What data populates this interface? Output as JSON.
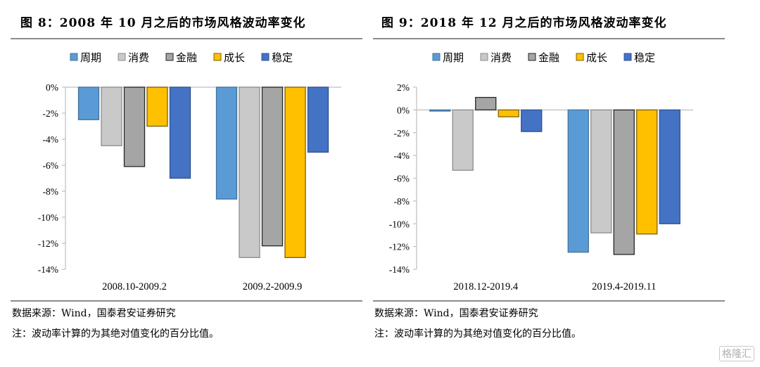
{
  "legend_labels": [
    "周期",
    "消费",
    "金融",
    "成长",
    "稳定"
  ],
  "series_colors": {
    "fill": [
      "#5B9BD5",
      "#C9C9C9",
      "#A5A5A5",
      "#FFC000",
      "#4472C4"
    ],
    "stroke": [
      "#41719C",
      "#8C8C8C",
      "#262626",
      "#7F6000",
      "#2F528F"
    ]
  },
  "charts": [
    {
      "title": "图 8：2008 年 10 月之后的市场风格波动率变化",
      "source": "数据来源：Wind，国泰君安证券研究",
      "note": "注：波动率计算的为其绝对值变化的百分比值。"
    },
    {
      "title": "图 9：2018 年 12 月之后的市场风格波动率变化",
      "source": "数据来源：Wind，国泰君安证券研究",
      "note": "注：波动率计算的为其绝对值变化的百分比值。"
    }
  ],
  "chart_data": [
    {
      "type": "bar",
      "title": "图 8：2008 年 10 月之后的市场风格波动率变化",
      "categories": [
        "2008.10-2009.2",
        "2009.2-2009.9"
      ],
      "series": [
        {
          "name": "周期",
          "values": [
            -2.5,
            -8.6
          ]
        },
        {
          "name": "消费",
          "values": [
            -4.5,
            -13.1
          ]
        },
        {
          "name": "金融",
          "values": [
            -6.1,
            -12.2
          ]
        },
        {
          "name": "成长",
          "values": [
            -3.0,
            -13.1
          ]
        },
        {
          "name": "稳定",
          "values": [
            -7.0,
            -5.0
          ]
        }
      ],
      "yticks": [
        "0%",
        "-2%",
        "-4%",
        "-6%",
        "-8%",
        "-10%",
        "-12%",
        "-14%"
      ],
      "ytick_values": [
        0,
        -2,
        -4,
        -6,
        -8,
        -10,
        -12,
        -14
      ],
      "ylim": [
        -14,
        0
      ],
      "xlabel": "",
      "ylabel": "",
      "unit": "%",
      "legend": "top",
      "grid": false
    },
    {
      "type": "bar",
      "title": "图 9：2018 年 12 月之后的市场风格波动率变化",
      "categories": [
        "2018.12-2019.4",
        "2019.4-2019.11"
      ],
      "series": [
        {
          "name": "周期",
          "values": [
            -0.1,
            -12.5
          ]
        },
        {
          "name": "消费",
          "values": [
            -5.3,
            -10.8
          ]
        },
        {
          "name": "金融",
          "values": [
            1.1,
            -12.7
          ]
        },
        {
          "name": "成长",
          "values": [
            -0.6,
            -10.9
          ]
        },
        {
          "name": "稳定",
          "values": [
            -1.9,
            -10.0
          ]
        }
      ],
      "yticks": [
        "2%",
        "0%",
        "-2%",
        "-4%",
        "-6%",
        "-8%",
        "-10%",
        "-12%",
        "-14%"
      ],
      "ytick_values": [
        2,
        0,
        -2,
        -4,
        -6,
        -8,
        -10,
        -12,
        -14
      ],
      "ylim": [
        -14,
        2
      ],
      "xlabel": "",
      "ylabel": "",
      "unit": "%",
      "legend": "top",
      "grid": false
    }
  ],
  "watermark": "格隆汇"
}
